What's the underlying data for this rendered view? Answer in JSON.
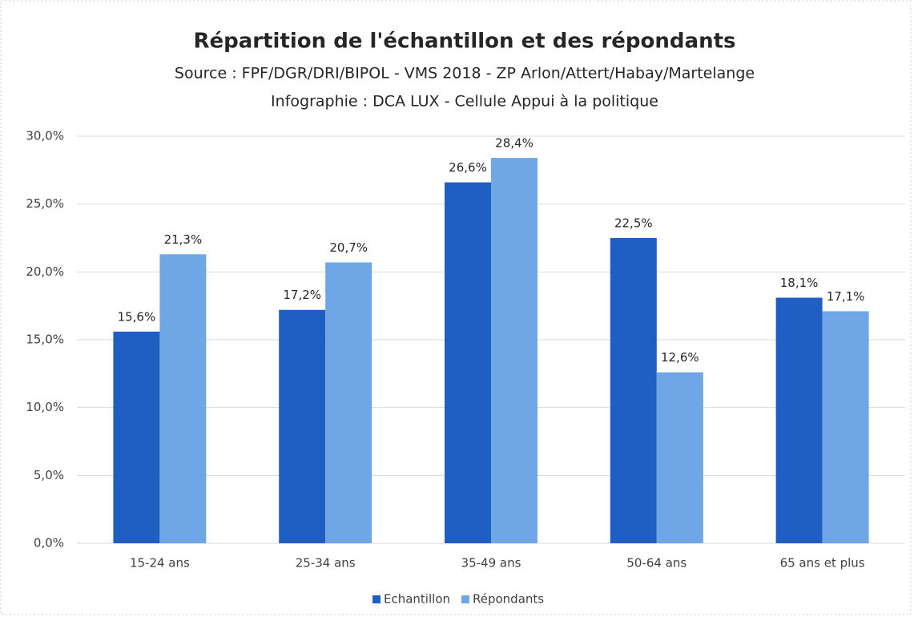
{
  "chart_data": {
    "type": "bar",
    "title": "Répartition de l'échantillon et des répondants",
    "subtitle": [
      "Source : FPF/DGR/DRI/BIPOL - VMS 2018 - ZP Arlon/Attert/Habay/Martelange",
      "Infographie : DCA LUX - Cellule Appui à la politique"
    ],
    "categories": [
      "15-24 ans",
      "25-34 ans",
      "35-49 ans",
      "50-64 ans",
      "65 ans et plus"
    ],
    "series": [
      {
        "name": "Echantillon",
        "color": "#1f5fc4",
        "values": [
          15.6,
          17.2,
          26.6,
          22.5,
          18.1
        ],
        "value_labels": [
          "15,6%",
          "17,2%",
          "26,6%",
          "22,5%",
          "18,1%"
        ]
      },
      {
        "name": "Répondants",
        "color": "#6fa7e6",
        "values": [
          21.3,
          20.7,
          28.4,
          12.6,
          17.1
        ],
        "value_labels": [
          "21,3%",
          "20,7%",
          "28,4%",
          "12,6%",
          "17,1%"
        ]
      }
    ],
    "ylim": [
      0,
      30
    ],
    "yticks": [
      {
        "value": 0,
        "label": "0,0%"
      },
      {
        "value": 5,
        "label": "5,0%"
      },
      {
        "value": 10,
        "label": "10,0%"
      },
      {
        "value": 15,
        "label": "15,0%"
      },
      {
        "value": 20,
        "label": "20,0%"
      },
      {
        "value": 25,
        "label": "25,0%"
      },
      {
        "value": 30,
        "label": "30,0%"
      }
    ],
    "grid": true,
    "legend": "bottom"
  }
}
